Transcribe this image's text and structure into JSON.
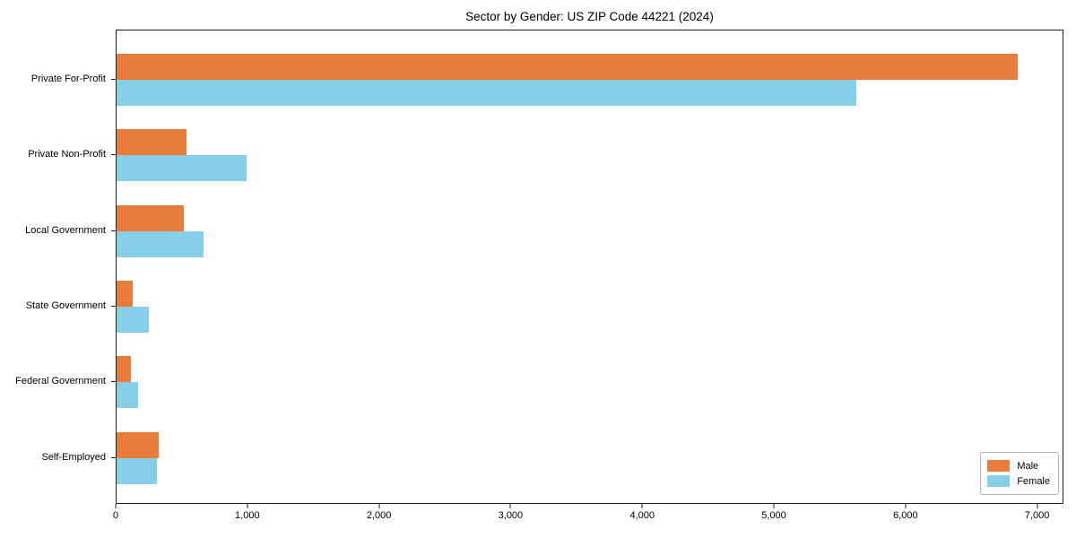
{
  "header": {
    "title": "Sector by Gender: US ZIP Code 44221 (2024)"
  },
  "chart_data": {
    "type": "bar",
    "orientation": "horizontal",
    "title": "Sector by Gender: US ZIP Code 44221 (2024)",
    "xlabel": "",
    "ylabel": "",
    "categories": [
      "Private For-Profit",
      "Private Non-Profit",
      "Local Government",
      "State Government",
      "Federal Government",
      "Self-Employed"
    ],
    "series": [
      {
        "name": "Male",
        "color": "#e87d3b",
        "values": [
          6860,
          530,
          515,
          125,
          110,
          320
        ]
      },
      {
        "name": "Female",
        "color": "#87cee8",
        "values": [
          5630,
          990,
          660,
          245,
          165,
          310
        ]
      }
    ],
    "xlim": [
      0,
      7200
    ],
    "xticks": {
      "values": [
        0,
        1000,
        2000,
        3000,
        4000,
        5000,
        6000,
        7000
      ],
      "labels": [
        "0",
        "1,000",
        "2,000",
        "3,000",
        "4,000",
        "5,000",
        "6,000",
        "7,000"
      ]
    },
    "legend": {
      "position": "lower right",
      "entries": [
        "Male",
        "Female"
      ]
    },
    "grid": false
  }
}
